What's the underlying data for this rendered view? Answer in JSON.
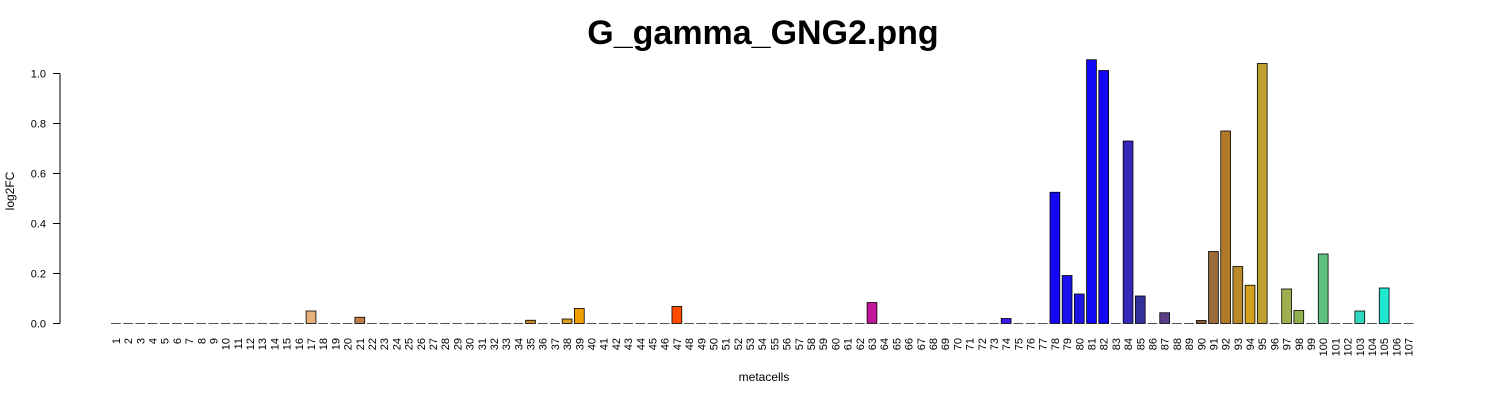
{
  "chart_data": {
    "type": "bar",
    "title": "G_gamma_GNG2.png",
    "xlabel": "metacells",
    "ylabel": "log2FC",
    "ylim": [
      0,
      1.05
    ],
    "yticks": [
      "0.0",
      "0.2",
      "0.4",
      "0.6",
      "0.8",
      "1.0"
    ],
    "ytick_values": [
      0,
      0.2,
      0.4,
      0.6,
      0.8,
      1.0
    ],
    "categories": [
      "1",
      "2",
      "3",
      "4",
      "5",
      "6",
      "7",
      "8",
      "9",
      "10",
      "11",
      "12",
      "13",
      "14",
      "15",
      "16",
      "17",
      "18",
      "19",
      "20",
      "21",
      "22",
      "23",
      "24",
      "25",
      "26",
      "27",
      "28",
      "29",
      "30",
      "31",
      "32",
      "33",
      "34",
      "35",
      "36",
      "37",
      "38",
      "39",
      "40",
      "41",
      "42",
      "43",
      "44",
      "45",
      "46",
      "47",
      "48",
      "49",
      "50",
      "51",
      "52",
      "53",
      "54",
      "55",
      "56",
      "57",
      "58",
      "59",
      "60",
      "61",
      "62",
      "63",
      "64",
      "65",
      "66",
      "67",
      "68",
      "69",
      "70",
      "71",
      "72",
      "73",
      "74",
      "75",
      "76",
      "77",
      "78",
      "79",
      "80",
      "81",
      "82",
      "83",
      "84",
      "85",
      "86",
      "87",
      "88",
      "89",
      "90",
      "91",
      "92",
      "93",
      "94",
      "95",
      "96",
      "97",
      "98",
      "99",
      "100",
      "101",
      "102",
      "103",
      "104",
      "105",
      "106",
      "107"
    ],
    "values": [
      0,
      0,
      0,
      0,
      0,
      0,
      0,
      0,
      0,
      0,
      0,
      0,
      0,
      0,
      0,
      0,
      0.05,
      0,
      0,
      0,
      0.025,
      0,
      0,
      0,
      0,
      0,
      0,
      0,
      0,
      0,
      0,
      0,
      0,
      0,
      0.013,
      0,
      0,
      0.018,
      0.06,
      0,
      0,
      0,
      0,
      0,
      0,
      0,
      0.068,
      0,
      0,
      0,
      0,
      0,
      0,
      0,
      0,
      0,
      0,
      0,
      0,
      0,
      0,
      0,
      0.084,
      0,
      0,
      0,
      0,
      0,
      0,
      0,
      0,
      0,
      0,
      0.02,
      0,
      0,
      0,
      0.525,
      0.192,
      0.118,
      1.055,
      1.012,
      0,
      0.73,
      0.11,
      0,
      0.043,
      0,
      0,
      0.012,
      0.288,
      0.77,
      0.228,
      0.153,
      1.04,
      0,
      0.138,
      0.052,
      0,
      0.278,
      0,
      0,
      0.05,
      0,
      0.142,
      0,
      0
    ],
    "colors": [
      "#b0b0b0",
      "#b0b0b0",
      "#b0b0b0",
      "#b0b0b0",
      "#b0b0b0",
      "#b0b0b0",
      "#b0b0b0",
      "#b0b0b0",
      "#b0b0b0",
      "#b0b0b0",
      "#b0b0b0",
      "#b0b0b0",
      "#b0b0b0",
      "#b0b0b0",
      "#b0b0b0",
      "#b0b0b0",
      "#e8b07a",
      "#b0b0b0",
      "#b0b0b0",
      "#b0b0b0",
      "#c27e48",
      "#b0b0b0",
      "#b0b0b0",
      "#b0b0b0",
      "#b0b0b0",
      "#b0b0b0",
      "#b0b0b0",
      "#b0b0b0",
      "#b0b0b0",
      "#b0b0b0",
      "#b0b0b0",
      "#b0b0b0",
      "#b0b0b0",
      "#b0b0b0",
      "#c88a2a",
      "#b0b0b0",
      "#b0b0b0",
      "#d4a020",
      "#f0a000",
      "#b0b0b0",
      "#b0b0b0",
      "#b0b0b0",
      "#b0b0b0",
      "#b0b0b0",
      "#b0b0b0",
      "#b0b0b0",
      "#ff4a00",
      "#b0b0b0",
      "#b0b0b0",
      "#b0b0b0",
      "#b0b0b0",
      "#b0b0b0",
      "#b0b0b0",
      "#b0b0b0",
      "#b0b0b0",
      "#b0b0b0",
      "#b0b0b0",
      "#b0b0b0",
      "#b0b0b0",
      "#b0b0b0",
      "#b0b0b0",
      "#b0b0b0",
      "#c0189a",
      "#b0b0b0",
      "#b0b0b0",
      "#b0b0b0",
      "#b0b0b0",
      "#b0b0b0",
      "#b0b0b0",
      "#b0b0b0",
      "#b0b0b0",
      "#b0b0b0",
      "#b0b0b0",
      "#3a18f0",
      "#b0b0b0",
      "#b0b0b0",
      "#b0b0b0",
      "#1508f5",
      "#1a10ee",
      "#1e14e8",
      "#1208f8",
      "#1408f4",
      "#b0b0b0",
      "#3428b8",
      "#34309a",
      "#b0b0b0",
      "#5a3e88",
      "#b0b0b0",
      "#b0b0b0",
      "#8a5a2a",
      "#9a6a3a",
      "#b07a28",
      "#b88a2a",
      "#d4a020",
      "#c0a030",
      "#b0b0b0",
      "#a0b050",
      "#90b050",
      "#b0b0b0",
      "#60c080",
      "#b0b0b0",
      "#b0b0b0",
      "#30d8c0",
      "#b0b0b0",
      "#20e8d0",
      "#b0b0b0",
      "#b0b0b0"
    ]
  }
}
